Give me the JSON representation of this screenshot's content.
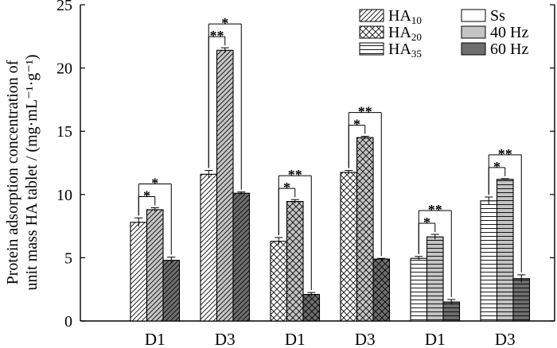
{
  "chart_data": {
    "type": "bar",
    "ylabel_line1": "Protein adsorption concentration of",
    "ylabel_line2": "unit mass HA tablet / (mg·mL⁻¹·g⁻¹)",
    "xlabel": "",
    "ylim": [
      0,
      25
    ],
    "yticks": [
      "0",
      "5",
      "10",
      "15",
      "20",
      "25"
    ],
    "groups": [
      {
        "label": "D1",
        "material": "HA10",
        "values": [
          7.8,
          8.8,
          4.8
        ],
        "errors": [
          0.35,
          0.15,
          0.25
        ],
        "sig": [
          {
            "from": 0,
            "to": 1,
            "text": "*"
          },
          {
            "from": 0,
            "to": 2,
            "text": "*"
          }
        ]
      },
      {
        "label": "D3",
        "material": "HA10",
        "values": [
          11.6,
          21.4,
          10.1
        ],
        "errors": [
          0.3,
          0.2,
          0.1
        ],
        "sig": [
          {
            "from": 0,
            "to": 1,
            "text": "**"
          },
          {
            "from": 0,
            "to": 2,
            "text": "*"
          }
        ]
      },
      {
        "label": "D1",
        "material": "HA20",
        "values": [
          6.3,
          9.45,
          2.1
        ],
        "errors": [
          0.3,
          0.15,
          0.15
        ],
        "sig": [
          {
            "from": 0,
            "to": 1,
            "text": "*"
          },
          {
            "from": 0,
            "to": 2,
            "text": "**"
          }
        ]
      },
      {
        "label": "D3",
        "material": "HA20",
        "values": [
          11.75,
          14.5,
          4.9
        ],
        "errors": [
          0.15,
          0.1,
          0.05
        ],
        "sig": [
          {
            "from": 0,
            "to": 1,
            "text": "*"
          },
          {
            "from": 0,
            "to": 2,
            "text": "**"
          }
        ]
      },
      {
        "label": "D1",
        "material": "HA35",
        "values": [
          4.95,
          6.65,
          1.5
        ],
        "errors": [
          0.15,
          0.2,
          0.2
        ],
        "sig": [
          {
            "from": 0,
            "to": 1,
            "text": "*"
          },
          {
            "from": 0,
            "to": 2,
            "text": "**"
          }
        ]
      },
      {
        "label": "D3",
        "material": "HA35",
        "values": [
          9.5,
          11.2,
          3.35
        ],
        "errors": [
          0.3,
          0.05,
          0.3
        ],
        "sig": [
          {
            "from": 0,
            "to": 1,
            "text": "*"
          },
          {
            "from": 0,
            "to": 2,
            "text": "**"
          }
        ]
      }
    ],
    "legend_material": [
      {
        "name": "HA",
        "sub": "10",
        "pattern": "diagonal"
      },
      {
        "name": "HA",
        "sub": "20",
        "pattern": "crosshatch"
      },
      {
        "name": "HA",
        "sub": "35",
        "pattern": "horizontal"
      }
    ],
    "legend_condition": [
      {
        "name": "Ss",
        "color": "#ffffff"
      },
      {
        "name": "40 Hz",
        "color": "#c4c4c4"
      },
      {
        "name": "60 Hz",
        "color": "#6e6e6e"
      }
    ],
    "legend_position": "top-right",
    "grid": false
  }
}
